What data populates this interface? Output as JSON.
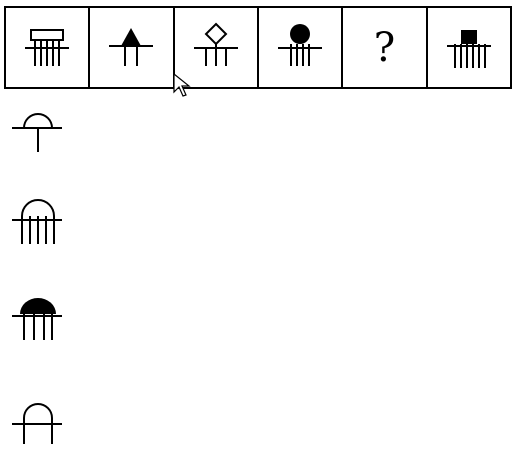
{
  "puzzle": {
    "cells": [
      {
        "icon": "rectangle-top-5-lines-icon"
      },
      {
        "icon": "triangle-top-1-line-icon"
      },
      {
        "icon": "diamond-top-3-lines-icon"
      },
      {
        "icon": "filled-circle-top-4-lines-icon"
      },
      {
        "icon": "question-mark-icon",
        "text": "?"
      },
      {
        "icon": "filled-square-top-6-lines-icon"
      }
    ]
  },
  "options": [
    {
      "icon": "semicircle-top-1-line-icon"
    },
    {
      "icon": "semicircle-top-4-lines-icon"
    },
    {
      "icon": "filled-semicircle-top-3-lines-icon"
    },
    {
      "icon": "arch-top-2-lines-icon"
    }
  ]
}
